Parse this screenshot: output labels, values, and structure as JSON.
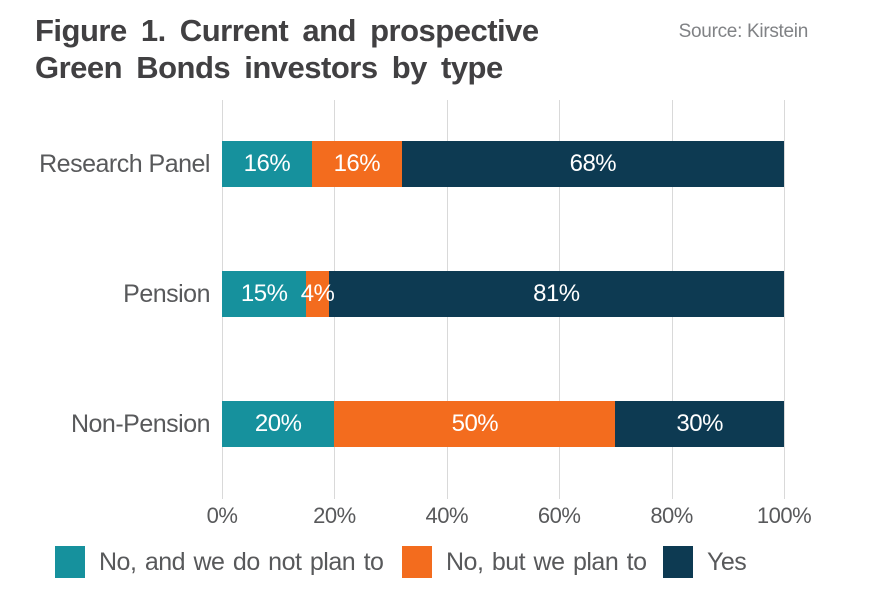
{
  "figure": {
    "title_line1": "Figure 1. Current and prospective",
    "title_line2": "Green Bonds investors by type",
    "source": "Source: Kirstein"
  },
  "chart_data": {
    "type": "bar",
    "orientation": "horizontal",
    "stacked": true,
    "title": "Figure 1. Current and prospective Green Bonds investors by type",
    "categories": [
      "Research Panel",
      "Pension",
      "Non-Pension"
    ],
    "series": [
      {
        "name": "No, and we do not plan to",
        "color": "#16919D",
        "values": [
          16,
          15,
          20
        ]
      },
      {
        "name": "No, but we plan to",
        "color": "#F36C1E",
        "values": [
          16,
          4,
          50
        ]
      },
      {
        "name": "Yes",
        "color": "#0D3A52",
        "values": [
          68,
          81,
          30
        ]
      }
    ],
    "value_suffix": "%",
    "x_ticks": [
      "0%",
      "20%",
      "40%",
      "60%",
      "80%",
      "100%"
    ],
    "xlim": [
      0,
      100
    ],
    "grid": true,
    "legend_position": "bottom"
  },
  "colors": {
    "teal": "#16919D",
    "orange": "#F36C1E",
    "navy": "#0D3A52",
    "gridline": "#d9d9d9",
    "title_text": "#414042",
    "label_text": "#58595b",
    "source_text": "#808285",
    "bar_value_text": "#ffffff"
  }
}
